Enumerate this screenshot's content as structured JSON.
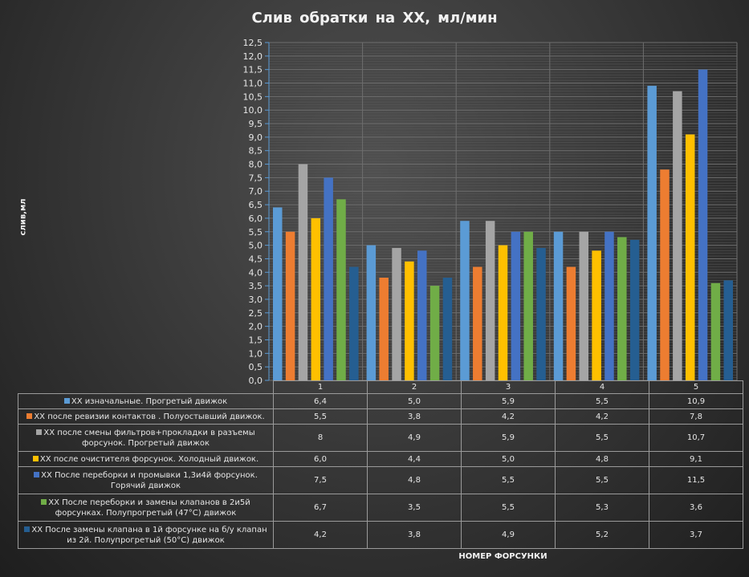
{
  "chart_data": {
    "type": "bar",
    "title": "Слив обратки  на ХХ, мл/мин",
    "ylabel": "слив,мл",
    "xlabel": "НОМЕР ФОРСУНКИ",
    "categories": [
      "1",
      "2",
      "3",
      "4",
      "5"
    ],
    "ylim": [
      0,
      12.5
    ],
    "ytick_step": 0.5,
    "grid": true,
    "legend": "data-table",
    "series": [
      {
        "name": "ХХ изначальные. Прогретый движок",
        "color": "#5b9bd5",
        "values": [
          6.4,
          5.0,
          5.9,
          5.5,
          10.9
        ],
        "labels": [
          "6,4",
          "5,0",
          "5,9",
          "5,5",
          "10,9"
        ]
      },
      {
        "name": "ХХ после ревизии контактов . Полуостывший движок.",
        "color": "#ed7d31",
        "values": [
          5.5,
          3.8,
          4.2,
          4.2,
          7.8
        ],
        "labels": [
          "5,5",
          "3,8",
          "4,2",
          "4,2",
          "7,8"
        ]
      },
      {
        "name": "ХХ после смены фильтров+прокладки в разъемы форсунок. Прогретый движок",
        "color": "#a5a5a5",
        "values": [
          8,
          4.9,
          5.9,
          5.5,
          10.7
        ],
        "labels": [
          "8",
          "4,9",
          "5,9",
          "5,5",
          "10,7"
        ]
      },
      {
        "name": "ХХ после очистителя форсунок. Холодный движок.",
        "color": "#ffc000",
        "values": [
          6.0,
          4.4,
          5.0,
          4.8,
          9.1
        ],
        "labels": [
          "6,0",
          "4,4",
          "5,0",
          "4,8",
          "9,1"
        ]
      },
      {
        "name": "ХХ После переборки и промывки 1,3и4й форсунок. Горячий движок",
        "color": "#4472c4",
        "values": [
          7.5,
          4.8,
          5.5,
          5.5,
          11.5
        ],
        "labels": [
          "7,5",
          "4,8",
          "5,5",
          "5,5",
          "11,5"
        ]
      },
      {
        "name": "ХХ После переборки и замены клапанов в 2и5й форсунках. Полупрогретый (47°С) движок",
        "color": "#70ad47",
        "values": [
          6.7,
          3.5,
          5.5,
          5.3,
          3.6
        ],
        "labels": [
          "6,7",
          "3,5",
          "5,5",
          "5,3",
          "3,6"
        ]
      },
      {
        "name": "ХХ После замены клапана в 1й форсунке на б/у клапан из 2й. Полупрогретый (50°С) движок",
        "color": "#255e91",
        "values": [
          4.2,
          3.8,
          4.9,
          5.2,
          3.7
        ],
        "labels": [
          "4,2",
          "3,8",
          "4,9",
          "5,2",
          "3,7"
        ]
      }
    ]
  }
}
